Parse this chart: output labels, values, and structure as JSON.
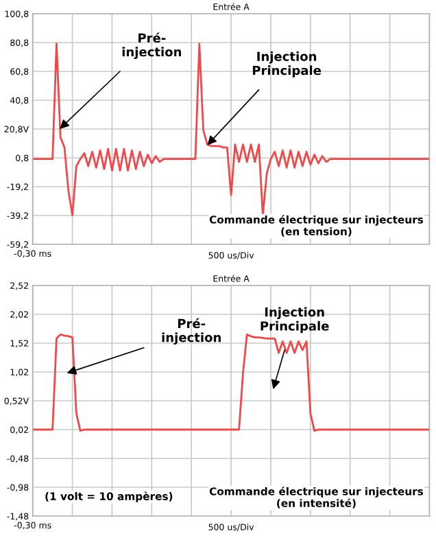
{
  "chart_data": [
    {
      "type": "line",
      "title": "Entrée A",
      "xlabel": "500 us/Div",
      "categories": [
        null,
        null,
        null,
        null,
        null,
        null,
        null,
        null,
        null,
        null,
        null,
        null,
        null,
        null,
        null,
        null,
        null,
        null,
        null,
        null,
        null,
        null,
        null,
        null,
        null,
        null,
        null,
        null,
        null,
        null,
        null,
        null,
        null,
        null,
        null,
        null,
        null,
        null,
        null,
        null,
        null,
        null,
        null,
        null,
        null,
        null,
        null,
        null,
        null,
        null,
        null,
        null,
        null,
        null,
        null,
        null,
        null,
        null,
        null,
        null,
        null,
        null,
        null,
        null,
        null,
        null,
        null,
        null,
        null,
        null,
        null,
        null,
        null,
        null,
        null,
        null,
        null,
        null,
        null,
        null,
        null,
        null,
        null,
        null,
        null,
        null,
        null,
        null,
        null,
        null,
        null,
        null,
        null,
        null,
        null,
        null,
        null,
        null,
        null,
        null,
        null
      ],
      "ylim": [
        -59.2,
        100.8
      ],
      "yticks": [
        {
          "value": -59.2,
          "label": "-59,2"
        },
        {
          "value": -39.2,
          "label": "-39,2"
        },
        {
          "value": -19.2,
          "label": "-19,2"
        },
        {
          "value": 0.8,
          "label": "0,8"
        },
        {
          "value": 20.8,
          "label": "20,8V"
        },
        {
          "value": 40.8,
          "label": "40,8"
        },
        {
          "value": 60.8,
          "label": "60,8"
        },
        {
          "value": 80.8,
          "label": "80,8"
        },
        {
          "value": 100.8,
          "label": "100,8"
        }
      ],
      "grid": true,
      "line_style": "solid",
      "marker": "none",
      "series": [
        {
          "color": "#f04848",
          "values": [
            0,
            0,
            0,
            0,
            0,
            0,
            80,
            15,
            8,
            -22,
            -39,
            -5,
            0,
            4,
            -5,
            5,
            -6,
            6,
            -7,
            7,
            -8,
            7,
            -8,
            7,
            -8,
            6,
            -7,
            5,
            -5,
            3,
            -3,
            2,
            -2,
            0,
            0,
            0,
            0,
            0,
            0,
            0,
            0,
            0,
            80,
            20,
            10,
            9,
            9,
            9,
            8,
            8,
            -25,
            10,
            -2,
            10,
            -2,
            10,
            -2,
            10,
            -39,
            -10,
            0,
            5,
            -5,
            6,
            -6,
            6,
            -6,
            5,
            -5,
            5,
            -4,
            3,
            -3,
            2,
            -2,
            0,
            0,
            0,
            0,
            0,
            0,
            0,
            0,
            0,
            0,
            0,
            0,
            0,
            0,
            0,
            0,
            0,
            0,
            0,
            0,
            0,
            0,
            0,
            0,
            0,
            0
          ]
        }
      ],
      "annotations": [
        "Pré-\ninjection",
        "Injection\nPrincipale",
        "-0,30 ms",
        "Commande électrique sur injecteurs\n(en tension)"
      ]
    },
    {
      "type": "line",
      "title": "Entrée A",
      "xlabel": "500 us/Div",
      "categories": [
        null,
        null,
        null,
        null,
        null,
        null,
        null,
        null,
        null,
        null,
        null,
        null,
        null,
        null,
        null,
        null,
        null,
        null,
        null,
        null,
        null,
        null,
        null,
        null,
        null,
        null,
        null,
        null,
        null,
        null,
        null,
        null,
        null,
        null,
        null,
        null,
        null,
        null,
        null,
        null,
        null,
        null,
        null,
        null,
        null,
        null,
        null,
        null,
        null,
        null,
        null,
        null,
        null,
        null,
        null,
        null,
        null,
        null,
        null,
        null,
        null,
        null,
        null,
        null,
        null,
        null,
        null,
        null,
        null,
        null,
        null,
        null,
        null,
        null,
        null,
        null,
        null,
        null,
        null,
        null,
        null,
        null,
        null,
        null,
        null,
        null,
        null,
        null,
        null,
        null,
        null,
        null,
        null,
        null,
        null,
        null,
        null,
        null,
        null,
        null,
        null
      ],
      "ylim": [
        -1.48,
        2.52
      ],
      "yticks": [
        {
          "value": -1.48,
          "label": "-1,48"
        },
        {
          "value": -0.98,
          "label": "-0,98"
        },
        {
          "value": -0.48,
          "label": "-0,48"
        },
        {
          "value": 0.02,
          "label": "0,02"
        },
        {
          "value": 0.52,
          "label": "0,52V"
        },
        {
          "value": 1.02,
          "label": "1,02"
        },
        {
          "value": 1.52,
          "label": "1,52"
        },
        {
          "value": 2.02,
          "label": "2,02"
        },
        {
          "value": 2.52,
          "label": "2,52"
        }
      ],
      "grid": true,
      "line_style": "solid",
      "marker": "none",
      "series": [
        {
          "color": "#f04848",
          "values": [
            0.02,
            0.02,
            0.02,
            0.02,
            0.02,
            0.02,
            1.6,
            1.67,
            1.65,
            1.64,
            1.62,
            0.3,
            0.0,
            0.02,
            0.02,
            0.02,
            0.02,
            0.02,
            0.02,
            0.02,
            0.02,
            0.02,
            0.02,
            0.02,
            0.02,
            0.02,
            0.02,
            0.02,
            0.02,
            0.02,
            0.02,
            0.02,
            0.02,
            0.02,
            0.02,
            0.02,
            0.02,
            0.02,
            0.02,
            0.02,
            0.02,
            0.02,
            0.02,
            0.02,
            0.02,
            0.02,
            0.02,
            0.02,
            0.02,
            0.02,
            0.02,
            0.02,
            0.02,
            1.0,
            1.67,
            1.64,
            1.62,
            1.62,
            1.61,
            1.6,
            1.6,
            1.6,
            1.35,
            1.55,
            1.35,
            1.55,
            1.35,
            1.55,
            1.4,
            1.55,
            0.3,
            0.0,
            0.02,
            0.02,
            0.02,
            0.02,
            0.02,
            0.02,
            0.02,
            0.02,
            0.02,
            0.02,
            0.02,
            0.02,
            0.02,
            0.02,
            0.02,
            0.02,
            0.02,
            0.02,
            0.02,
            0.02,
            0.02,
            0.02,
            0.02,
            0.02,
            0.02,
            0.02,
            0.02,
            0.02,
            0.02
          ]
        }
      ],
      "annotations": [
        "Pré-\ninjection",
        "Injection\nPrincipale",
        "-0,30 ms",
        "(1 volt = 10 ampères)",
        "Commande électrique sur injecteurs\n(en intensité)"
      ]
    }
  ]
}
